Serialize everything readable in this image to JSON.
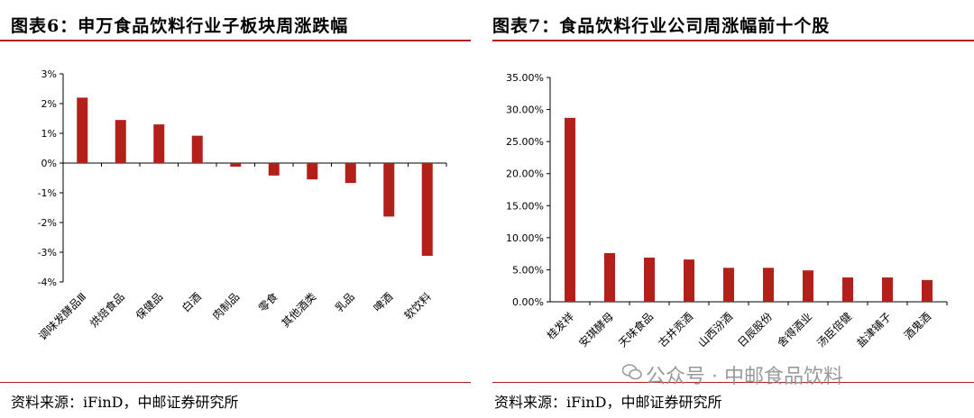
{
  "left": {
    "title": "图表6：申万食品饮料行业子板块周涨跌幅",
    "source": "资料来源：iFinD，中邮证券研究所"
  },
  "right": {
    "title": "图表7：食品饮料行业公司周涨幅前十个股",
    "source": "资料来源：iFinD，中邮证券研究所"
  },
  "watermark": "公众号 · 中邮食品饮料",
  "colors": {
    "bar": "#b32019",
    "rule": "#b32019"
  },
  "chart_data": [
    {
      "type": "bar",
      "title": "图表6：申万食品饮料行业子板块周涨跌幅",
      "categories": [
        "调味发酵品Ⅲ",
        "烘焙食品",
        "保健品",
        "白酒",
        "肉制品",
        "零食",
        "其他酒类",
        "乳品",
        "啤酒",
        "软饮料"
      ],
      "values": [
        2.2,
        1.45,
        1.3,
        0.92,
        -0.12,
        -0.42,
        -0.55,
        -0.67,
        -1.8,
        -3.12
      ],
      "ylim": [
        -4,
        3
      ],
      "yticks": [
        "3%",
        "2%",
        "1%",
        "0%",
        "-1%",
        "-2%",
        "-3%",
        "-4%"
      ],
      "grid": false
    },
    {
      "type": "bar",
      "title": "图表7：食品饮料行业公司周涨幅前十个股",
      "categories": [
        "桂发祥",
        "安琪酵母",
        "天味食品",
        "古井贡酒",
        "山西汾酒",
        "日辰股份",
        "舍得酒业",
        "汤臣倍健",
        "盐津铺子",
        "酒鬼酒"
      ],
      "values": [
        28.7,
        7.6,
        6.9,
        6.6,
        5.3,
        5.3,
        4.9,
        3.8,
        3.8,
        3.4
      ],
      "ylim": [
        0,
        35
      ],
      "yticks": [
        "35.00%",
        "30.00%",
        "25.00%",
        "20.00%",
        "15.00%",
        "10.00%",
        "5.00%",
        "0.00%"
      ],
      "grid": false
    }
  ]
}
